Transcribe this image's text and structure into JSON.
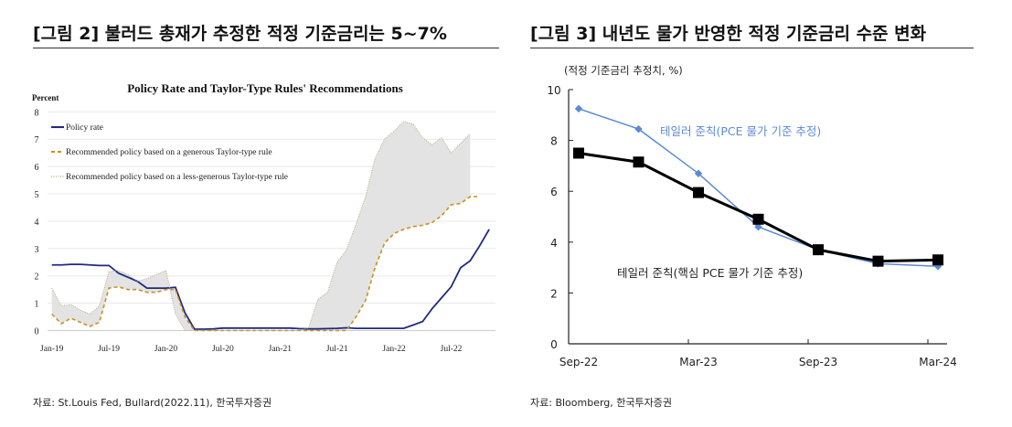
{
  "left": {
    "title": "[그림 2] 불러드 총재가 추정한 적정 기준금리는 5~7%",
    "source": "자료: St.Louis Fed, Bullard(2022.11), 한국투자증권"
  },
  "right": {
    "title": "[그림 3] 내년도 물가 반영한 적정 기준금리 수준 변화",
    "source": "자료: Bloomberg, 한국투자증권"
  },
  "chart_data": [
    {
      "type": "line",
      "title": "Policy Rate and Taylor-Type Rules' Recommendations",
      "ylabel": "Percent",
      "ylim": [
        0,
        8
      ],
      "yticks": [
        "0",
        "1",
        "2",
        "3",
        "4",
        "5",
        "6",
        "7",
        "8"
      ],
      "xticks": [
        "Jan-19",
        "Jul-19",
        "Jan-20",
        "Jul-20",
        "Jan-21",
        "Jul-21",
        "Jan-22",
        "Jul-22"
      ],
      "x_start": "Jan-19",
      "x_frequency": "monthly",
      "legend": "top-left",
      "grid": true,
      "series": [
        {
          "name": "Policy rate",
          "color": "#1f2a80",
          "values": [
            2.4,
            2.4,
            2.42,
            2.42,
            2.4,
            2.38,
            2.38,
            2.1,
            1.95,
            1.8,
            1.55,
            1.55,
            1.55,
            1.58,
            0.65,
            0.05,
            0.05,
            0.06,
            0.09,
            0.09,
            0.09,
            0.09,
            0.09,
            0.09,
            0.09,
            0.09,
            0.07,
            0.06,
            0.06,
            0.07,
            0.08,
            0.1,
            0.08,
            0.08,
            0.08,
            0.08,
            0.08,
            0.08,
            0.2,
            0.33,
            0.8,
            1.2,
            1.6,
            2.3,
            2.55,
            3.1,
            3.7
          ]
        },
        {
          "name": "Recommended policy based on a generous Taylor-type rule",
          "color": "#c8901e",
          "values": [
            0.6,
            0.25,
            0.45,
            0.3,
            0.15,
            0.3,
            1.55,
            1.6,
            1.5,
            1.5,
            1.4,
            1.4,
            1.5,
            1.5,
            0.5,
            0,
            0,
            0,
            0,
            0,
            0,
            0,
            0,
            0,
            0,
            0,
            0,
            0,
            0,
            0,
            0,
            0,
            0.5,
            1.1,
            2.3,
            3.2,
            3.55,
            3.7,
            3.8,
            3.85,
            3.95,
            4.2,
            4.6,
            4.65,
            4.9,
            4.9
          ]
        },
        {
          "name": "Recommended policy based on a less-generous Taylor-type rule",
          "color": "#b8a878",
          "values": [
            1.55,
            0.9,
            0.95,
            0.75,
            0.6,
            0.9,
            2.15,
            2.2,
            2.05,
            1.8,
            1.9,
            2.05,
            2.2,
            0.6,
            0,
            0,
            0,
            0,
            0,
            0,
            0,
            0,
            0,
            0,
            0,
            0,
            0,
            0.1,
            1.15,
            1.4,
            2.5,
            2.95,
            3.9,
            4.9,
            6.3,
            7.0,
            7.3,
            7.65,
            7.55,
            7.05,
            6.8,
            7.05,
            6.5,
            6.85,
            7.2
          ]
        }
      ]
    },
    {
      "type": "line",
      "ylabel": "(적정 기준금리 추정치, %)",
      "ylim": [
        0,
        10
      ],
      "yticks": [
        "0",
        "2",
        "4",
        "6",
        "8",
        "10"
      ],
      "categories": [
        "Sep-22",
        "Dec-22",
        "Mar-23",
        "Jun-23",
        "Sep-23",
        "Dec-23",
        "Mar-24"
      ],
      "xticks": [
        "Sep-22",
        "Mar-23",
        "Sep-23",
        "Mar-24"
      ],
      "grid": false,
      "series": [
        {
          "name": "테일러 준칙(PCE 물가 기준 추정)",
          "color": "#5b8bd4",
          "values": [
            9.25,
            8.45,
            6.7,
            4.6,
            3.7,
            3.15,
            3.05
          ]
        },
        {
          "name": "테일러 준칙(핵심 PCE 물가 기준 추정)",
          "color": "#000000",
          "values": [
            7.5,
            7.15,
            5.95,
            4.9,
            3.7,
            3.25,
            3.3
          ]
        }
      ]
    }
  ]
}
